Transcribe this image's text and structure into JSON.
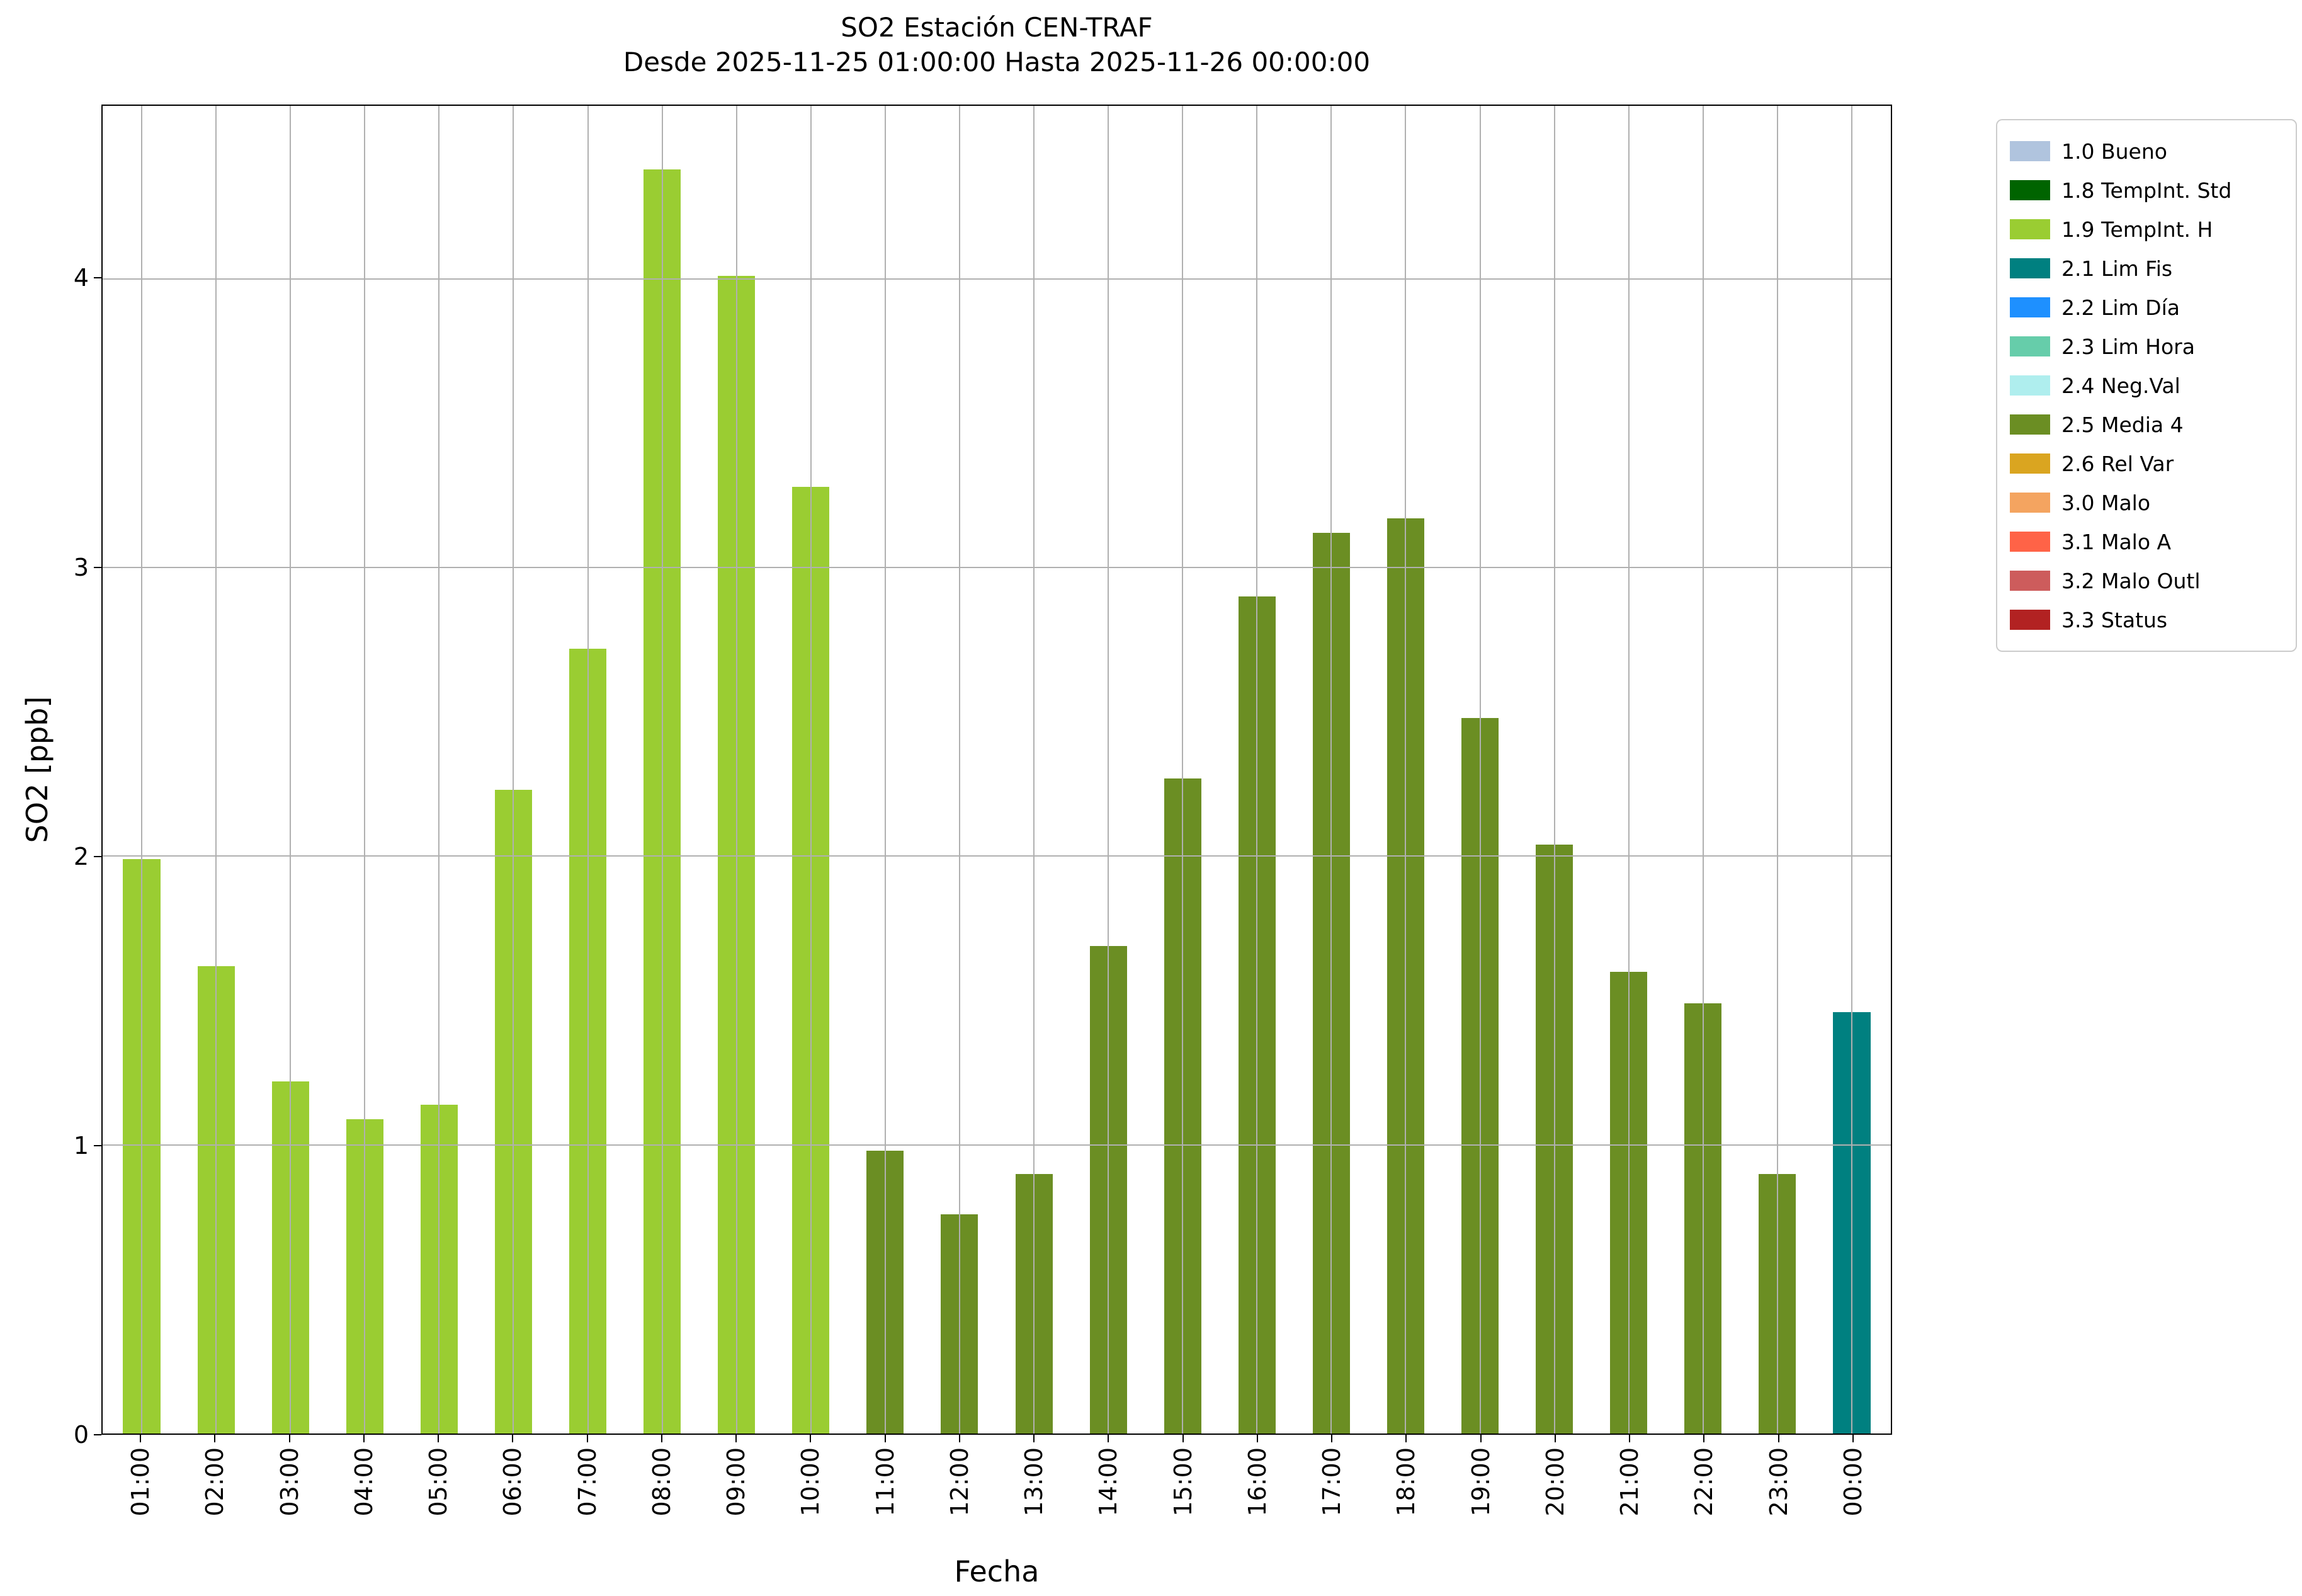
{
  "title": "SO2 Estación CEN-TRAF",
  "subtitle": "Desde 2025-11-25 01:00:00 Hasta 2025-11-26 00:00:00",
  "xlabel": "Fecha",
  "ylabel": "SO2 [ppb]",
  "chart_data": {
    "type": "bar",
    "title": "SO2 Estación CEN-TRAF",
    "subtitle": "Desde 2025-11-25 01:00:00 Hasta 2025-11-26 00:00:00",
    "xlabel": "Fecha",
    "ylabel": "SO2 [ppb]",
    "categories": [
      "01:00",
      "02:00",
      "03:00",
      "04:00",
      "05:00",
      "06:00",
      "07:00",
      "08:00",
      "09:00",
      "10:00",
      "11:00",
      "12:00",
      "13:00",
      "14:00",
      "15:00",
      "16:00",
      "17:00",
      "18:00",
      "19:00",
      "20:00",
      "21:00",
      "22:00",
      "23:00",
      "00:00"
    ],
    "values": [
      1.99,
      1.62,
      1.22,
      1.09,
      1.14,
      2.23,
      2.72,
      4.38,
      4.01,
      3.28,
      0.98,
      0.76,
      0.9,
      1.69,
      2.27,
      2.9,
      3.12,
      3.17,
      2.48,
      2.04,
      1.6,
      1.49,
      0.9,
      1.46
    ],
    "bar_status": [
      "1.9 TempInt. H",
      "1.9 TempInt. H",
      "1.9 TempInt. H",
      "1.9 TempInt. H",
      "1.9 TempInt. H",
      "1.9 TempInt. H",
      "1.9 TempInt. H",
      "1.9 TempInt. H",
      "1.9 TempInt. H",
      "1.9 TempInt. H",
      "2.5 Media 4",
      "2.5 Media 4",
      "2.5 Media 4",
      "2.5 Media 4",
      "2.5 Media 4",
      "2.5 Media 4",
      "2.5 Media 4",
      "2.5 Media 4",
      "2.5 Media 4",
      "2.5 Media 4",
      "2.5 Media 4",
      "2.5 Media 4",
      "2.5 Media 4",
      "2.1 Lim Fis"
    ],
    "bar_colors": [
      "#9ACD32",
      "#9ACD32",
      "#9ACD32",
      "#9ACD32",
      "#9ACD32",
      "#9ACD32",
      "#9ACD32",
      "#9ACD32",
      "#9ACD32",
      "#9ACD32",
      "#6B8E23",
      "#6B8E23",
      "#6B8E23",
      "#6B8E23",
      "#6B8E23",
      "#6B8E23",
      "#6B8E23",
      "#6B8E23",
      "#6B8E23",
      "#6B8E23",
      "#6B8E23",
      "#6B8E23",
      "#6B8E23",
      "#008080"
    ],
    "ylim": [
      0,
      4.6
    ],
    "yticks": [
      0,
      1,
      2,
      3,
      4
    ],
    "x_range": [
      -0.525,
      23.525
    ],
    "bar_width": 0.5,
    "grid": true,
    "grid_color": "#b0b0b0",
    "legend_position": "outside upper right",
    "legend": [
      {
        "label": "1.0 Bueno",
        "color": "#B0C4DE"
      },
      {
        "label": "1.8 TempInt. Std",
        "color": "#006400"
      },
      {
        "label": "1.9 TempInt. H",
        "color": "#9ACD32"
      },
      {
        "label": "2.1 Lim Fis",
        "color": "#008080"
      },
      {
        "label": "2.2 Lim Día",
        "color": "#1E90FF"
      },
      {
        "label": "2.3 Lim Hora",
        "color": "#66CDAA"
      },
      {
        "label": "2.4 Neg.Val",
        "color": "#AFEEEE"
      },
      {
        "label": "2.5 Media 4",
        "color": "#6B8E23"
      },
      {
        "label": "2.6 Rel Var",
        "color": "#DAA520"
      },
      {
        "label": "3.0 Malo",
        "color": "#F4A460"
      },
      {
        "label": "3.1 Malo A",
        "color": "#FF6347"
      },
      {
        "label": "3.2 Malo Outl",
        "color": "#CD5C5C"
      },
      {
        "label": "3.3 Status",
        "color": "#B22222"
      }
    ]
  }
}
